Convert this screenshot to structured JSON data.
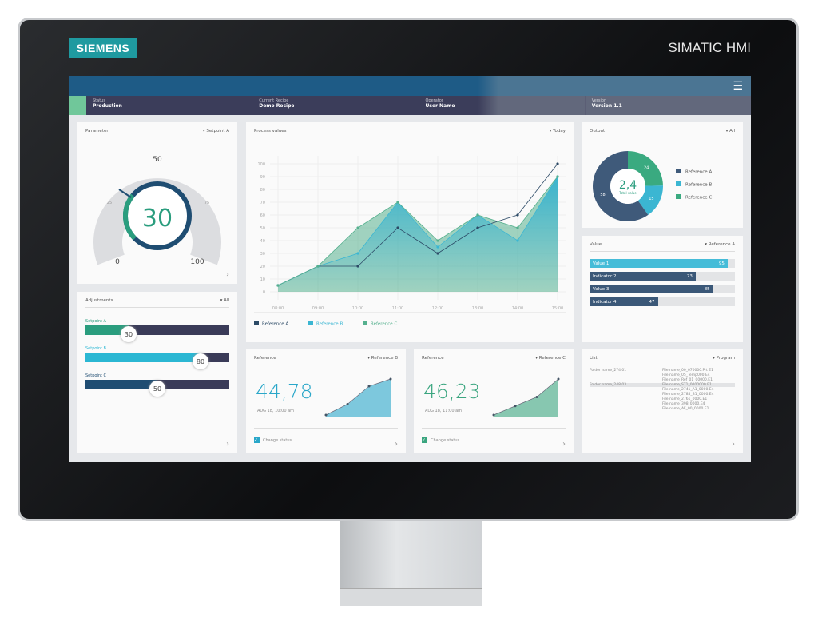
{
  "device": {
    "logo": "SIEMENS",
    "brand": "SIMATIC HMI"
  },
  "header": {
    "menu_icon": "hamburger-icon",
    "fields": [
      {
        "label": "Status",
        "value": "Production"
      },
      {
        "label": "Current Recipe",
        "value": "Demo Recipe"
      },
      {
        "label": "Operator",
        "value": "User Name"
      },
      {
        "label": "Version",
        "value": "Version 1.1"
      }
    ]
  },
  "parameter": {
    "title": "Parameter",
    "filter": "▾ Setpoint A",
    "value": "30",
    "scale": {
      "min": "0",
      "mid": "50",
      "max": "100",
      "q1": "25",
      "q3": "75"
    },
    "gauge_fraction": 0.3
  },
  "adjustments": {
    "title": "Adjustments",
    "filter": "▾ All",
    "sliders": [
      {
        "label": "Setpoint A",
        "value": "30",
        "percent": 30,
        "color": "#2a9d7e"
      },
      {
        "label": "Setpoint B",
        "value": "80",
        "percent": 80,
        "color": "#2bb7d3"
      },
      {
        "label": "Setpoint C",
        "value": "50",
        "percent": 50,
        "color": "#1f4d72"
      }
    ]
  },
  "process": {
    "title": "Process values",
    "filter": "▾ Today"
  },
  "chart_data": {
    "type": "area",
    "x": [
      "08:00",
      "09:00",
      "10:00",
      "11:00",
      "12:00",
      "13:00",
      "14:00",
      "15:00"
    ],
    "ylim": [
      0,
      100
    ],
    "yticks": [
      "0",
      "10",
      "20",
      "30",
      "40",
      "50",
      "60",
      "70",
      "80",
      "90",
      "100"
    ],
    "grid": true,
    "legend": "bottom-left",
    "series": [
      {
        "name": "Reference A",
        "color": "#2c4a66",
        "values": [
          5,
          20,
          20,
          50,
          30,
          50,
          60,
          100
        ]
      },
      {
        "name": "Reference B",
        "color": "#3bb6d2",
        "values": [
          5,
          20,
          30,
          70,
          35,
          60,
          40,
          90
        ]
      },
      {
        "name": "Reference C",
        "color": "#55b08e",
        "values": [
          5,
          20,
          50,
          70,
          40,
          60,
          50,
          90
        ]
      }
    ]
  },
  "output": {
    "title": "Output",
    "filter": "▾ All",
    "center_value": "2,4",
    "center_label": "Total value",
    "slices": [
      {
        "name": "Reference A",
        "value": 58,
        "color": "#3f5a7a"
      },
      {
        "name": "Reference B",
        "value": 15,
        "color": "#3bb6d2"
      },
      {
        "name": "Reference C",
        "value": 24,
        "color": "#3aaa80"
      }
    ]
  },
  "values": {
    "title": "Value",
    "filter": "▾ Reference A",
    "bars": [
      {
        "label": "Value 1",
        "value": 95,
        "color": "#45bcd8"
      },
      {
        "label": "Indicator 2",
        "value": 73,
        "color": "#3b5878"
      },
      {
        "label": "Value 3",
        "value": 85,
        "color": "#3b5878"
      },
      {
        "label": "Indicator 4",
        "value": 47,
        "color": "#3b5878"
      }
    ]
  },
  "refs": [
    {
      "title": "Reference",
      "filter": "▾ Reference B",
      "value": "44,78",
      "time": "AUG 18, 10:00 am",
      "check": "Change status",
      "color": "#2aa7c9",
      "points": [
        0,
        0.3,
        0.8,
        1
      ]
    },
    {
      "title": "Reference",
      "filter": "▾ Reference C",
      "value": "46,23",
      "time": "AUG 18, 11:00 am",
      "check": "Change status",
      "color": "#3aa57f",
      "points": [
        0,
        0.25,
        0.5,
        1
      ]
    }
  ],
  "list": {
    "title": "List",
    "filter": "▾ Program",
    "rows": [
      [
        "Folder name_274.01",
        "File name_00_070000.Prt E1"
      ],
      [
        "",
        "File name_05_Temp000.E4"
      ],
      [
        "",
        "File name_Ref_01_00000.E1"
      ],
      [
        "Folder name_248.03",
        "File name_ST1_0000000.E1"
      ],
      [
        "",
        "File name_2741_A1_0000.E4"
      ],
      [
        "",
        "File name_2785_B1_0000.E4"
      ],
      [
        "",
        "File name_2761_0000.E1"
      ],
      [
        "",
        "File name_398_0000.E4"
      ],
      [
        "",
        "File name_AF_00_0000.E1"
      ]
    ]
  }
}
